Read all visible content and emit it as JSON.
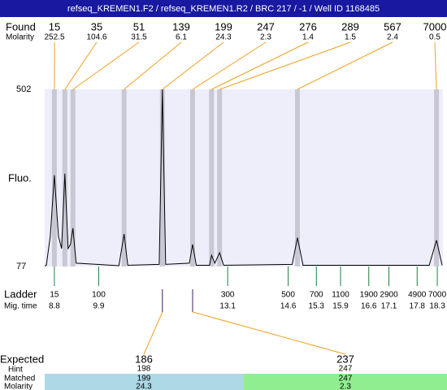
{
  "chart_data": {
    "type": "electropherogram",
    "title": "refseq_KREMEN1.F2 / refseq_KREMEN1.R2 / BRC 217 / -1 / Well ID 1168485",
    "y_label": "Fluo.",
    "ylim": [
      77,
      502
    ],
    "yticks": [
      77,
      502
    ],
    "xlim": [
      8.56,
      18.44
    ],
    "trace": {
      "color": "#000000",
      "x": [
        8.56,
        8.6,
        8.7,
        8.8,
        8.9,
        8.98,
        9.06,
        9.14,
        9.2,
        9.26,
        9.34,
        10.4,
        10.53,
        10.62,
        11.4,
        11.48,
        11.56,
        12.15,
        12.23,
        12.32,
        12.65,
        12.7,
        12.78,
        12.9,
        13.0,
        14.7,
        14.83,
        14.97,
        18.1,
        18.28,
        18.42
      ],
      "values": [
        78,
        80,
        150,
        296,
        150,
        120,
        300,
        120,
        130,
        169,
        85,
        79,
        155,
        80,
        82,
        502,
        82,
        85,
        130,
        80,
        80,
        104,
        85,
        110,
        80,
        82,
        146,
        80,
        80,
        140,
        80
      ]
    },
    "found": {
      "label": "Found",
      "molarity_label": "Molarity",
      "color": "#f0a020",
      "sizes": [
        "15",
        "35",
        "51",
        "139",
        "199",
        "247",
        "276",
        "289",
        "567",
        "7000"
      ],
      "molarity": [
        "252.5",
        "104.6",
        "31.5",
        "6.1",
        "24.3",
        "2.3",
        "1.4",
        "1.5",
        "2.4",
        "0.5"
      ],
      "times": [
        8.8,
        9.06,
        9.26,
        10.53,
        11.48,
        12.23,
        12.7,
        12.9,
        14.83,
        18.28
      ]
    },
    "ladder": {
      "label": "Ladder",
      "time_label": "Mig. time",
      "color": "#208040",
      "sizes": [
        "15",
        "100",
        "300",
        "500",
        "700",
        "1100",
        "1900",
        "2900",
        "4900",
        "7000"
      ],
      "times": [
        8.8,
        9.9,
        13.1,
        14.6,
        15.3,
        15.9,
        16.6,
        17.1,
        17.8,
        18.3
      ],
      "time_labels": [
        "8.8",
        "9.9",
        "13.1",
        "14.6",
        "15.3",
        "15.9",
        "16.6",
        "17.1",
        "17.8",
        "18.3"
      ]
    },
    "expected": {
      "label": "Expected",
      "hint_label": "Hint",
      "matched_label": "Matched",
      "molarity_label": "Molarity",
      "items": [
        {
          "size": "186",
          "hint": "198",
          "matched": "199",
          "molarity": "24.3",
          "time": 11.48,
          "color": "#add8e6"
        },
        {
          "size": "237",
          "hint": "247",
          "matched": "247",
          "molarity": "2.3",
          "time": 12.23,
          "color": "#90ee90"
        }
      ]
    }
  }
}
